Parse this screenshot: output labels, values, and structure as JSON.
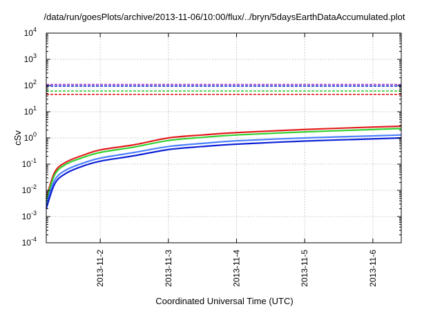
{
  "chart_data": {
    "type": "line",
    "title": "/data/run/goesPlots/archive/2013-11-06/10:00/flux/../bryn/5daysEarthDataAccumulated.plot",
    "xlabel": "Coordinated Universal Time (UTC)",
    "ylabel": "cSv",
    "yscale": "log",
    "ylim": [
      0.0001,
      10000
    ],
    "xlim": [
      "2013-11-01T05:00",
      "2013-11-06T10:00"
    ],
    "x_ticks": [
      "2013-11-2",
      "2013-11-3",
      "2013-11-4",
      "2013-11-5",
      "2013-11-6"
    ],
    "y_ticks": [
      {
        "base": "10",
        "exp": "-4"
      },
      {
        "base": "10",
        "exp": "-3"
      },
      {
        "base": "10",
        "exp": "-2"
      },
      {
        "base": "10",
        "exp": "-1"
      },
      {
        "base": "10",
        "exp": "0"
      },
      {
        "base": "10",
        "exp": "1"
      },
      {
        "base": "10",
        "exp": "2"
      },
      {
        "base": "10",
        "exp": "3"
      },
      {
        "base": "10",
        "exp": "4"
      }
    ],
    "grid": true,
    "series": [
      {
        "color": "#e41a1c",
        "style": "solid",
        "x": [
          "2013-11-01T05:00",
          "2013-11-01T08:00",
          "2013-11-01T12:00",
          "2013-11-01T18:00",
          "2013-11-02T00:00",
          "2013-11-02T12:00",
          "2013-11-03T00:00",
          "2013-11-03T12:00",
          "2013-11-04T00:00",
          "2013-11-05T00:00",
          "2013-11-06T00:00",
          "2013-11-06T10:00"
        ],
        "values": [
          0.005,
          0.05,
          0.12,
          0.22,
          0.35,
          0.55,
          1.0,
          1.3,
          1.6,
          2.1,
          2.6,
          2.8
        ]
      },
      {
        "color": "#2ed12e",
        "style": "solid",
        "x": [
          "2013-11-01T05:00",
          "2013-11-01T08:00",
          "2013-11-01T12:00",
          "2013-11-01T18:00",
          "2013-11-02T00:00",
          "2013-11-02T12:00",
          "2013-11-03T00:00",
          "2013-11-03T12:00",
          "2013-11-04T00:00",
          "2013-11-05T00:00",
          "2013-11-06T00:00",
          "2013-11-06T10:00"
        ],
        "values": [
          0.004,
          0.04,
          0.1,
          0.18,
          0.28,
          0.45,
          0.8,
          1.05,
          1.3,
          1.7,
          2.1,
          2.3
        ]
      },
      {
        "color": "#4a7fff",
        "style": "solid",
        "x": [
          "2013-11-01T05:00",
          "2013-11-01T08:00",
          "2013-11-01T12:00",
          "2013-11-01T18:00",
          "2013-11-02T00:00",
          "2013-11-02T12:00",
          "2013-11-03T00:00",
          "2013-11-03T12:00",
          "2013-11-04T00:00",
          "2013-11-05T00:00",
          "2013-11-06T00:00",
          "2013-11-06T10:00"
        ],
        "values": [
          0.003,
          0.025,
          0.06,
          0.11,
          0.17,
          0.28,
          0.47,
          0.62,
          0.78,
          1.0,
          1.2,
          1.3
        ]
      },
      {
        "color": "#0a1fd6",
        "style": "solid",
        "x": [
          "2013-11-01T05:00",
          "2013-11-01T08:00",
          "2013-11-01T12:00",
          "2013-11-01T18:00",
          "2013-11-02T00:00",
          "2013-11-02T12:00",
          "2013-11-03T00:00",
          "2013-11-03T12:00",
          "2013-11-04T00:00",
          "2013-11-05T00:00",
          "2013-11-06T00:00",
          "2013-11-06T10:00"
        ],
        "values": [
          0.002,
          0.018,
          0.045,
          0.085,
          0.13,
          0.21,
          0.36,
          0.47,
          0.58,
          0.76,
          0.92,
          1.0
        ]
      }
    ],
    "threshold_lines": [
      {
        "color": "#9933cc",
        "style": "dashed",
        "value": 110
      },
      {
        "color": "#0a1fd6",
        "style": "dashed",
        "value": 95
      },
      {
        "color": "#2ed12e",
        "style": "dashed",
        "value": 62
      },
      {
        "color": "#e41a1c",
        "style": "dashed",
        "value": 46
      }
    ]
  }
}
